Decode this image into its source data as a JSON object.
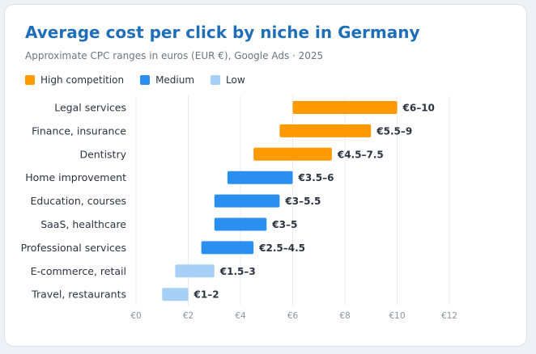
{
  "header": {
    "title": "Average cost per click by niche in Germany",
    "subtitle": "Approximate CPC ranges in euros (EUR €), Google Ads · 2025"
  },
  "legend": [
    {
      "label": "High competition",
      "color": "#ff9900"
    },
    {
      "label": "Medium",
      "color": "#2b8ff0"
    },
    {
      "label": "Low",
      "color": "#a6d0f5"
    }
  ],
  "chart_data": {
    "type": "bar",
    "orientation": "horizontal-range",
    "title": "Average cost per click by niche in Germany",
    "subtitle": "Approximate CPC ranges in euros (EUR €), Google Ads · 2025",
    "xlabel": "",
    "ylabel": "",
    "xlim": [
      0,
      12
    ],
    "xticks": [
      0,
      2,
      4,
      6,
      8,
      10,
      12
    ],
    "xtick_labels": [
      "€0",
      "€2",
      "€4",
      "€6",
      "€8",
      "€10",
      "€12"
    ],
    "grid": "vertical",
    "legend_position": "top-left",
    "categories": [
      "Legal services",
      "Finance, insurance",
      "Dentistry",
      "Home improvement",
      "Education, courses",
      "SaaS, healthcare",
      "Professional services",
      "E-commerce, retail",
      "Travel, restaurants"
    ],
    "ranges": [
      [
        6,
        10
      ],
      [
        5.5,
        9
      ],
      [
        4.5,
        7.5
      ],
      [
        3.5,
        6
      ],
      [
        3,
        5.5
      ],
      [
        3,
        5
      ],
      [
        2.5,
        4.5
      ],
      [
        1.5,
        3
      ],
      [
        1,
        2
      ]
    ],
    "value_labels": [
      "€6–10",
      "€5.5–9",
      "€4.5–7.5",
      "€3.5–6",
      "€3–5.5",
      "€3–5",
      "€2.5–4.5",
      "€1.5–3",
      "€1–2"
    ],
    "groups": [
      "High competition",
      "High competition",
      "High competition",
      "Medium",
      "Medium",
      "Medium",
      "Medium",
      "Low",
      "Low"
    ]
  }
}
